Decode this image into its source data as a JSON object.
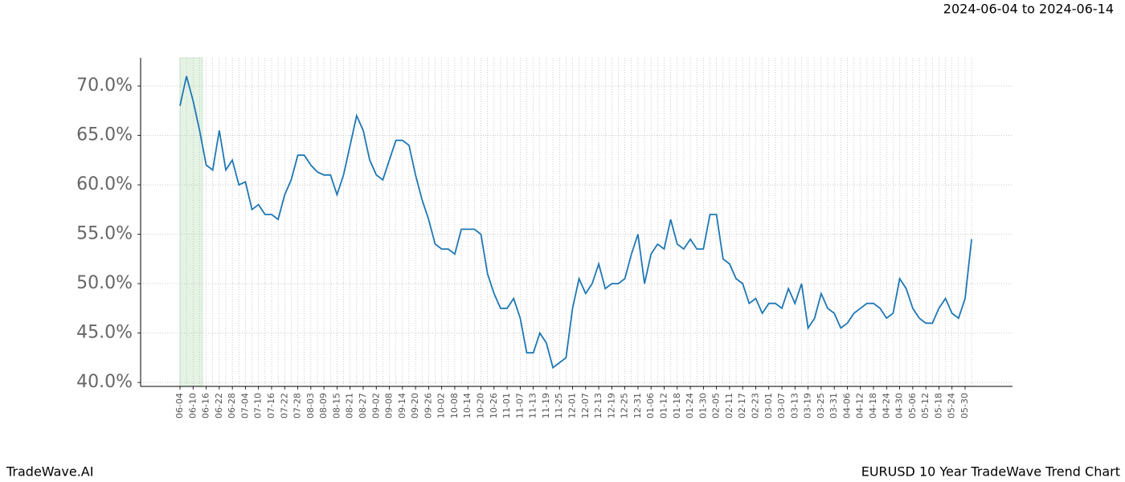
{
  "chart_data": {
    "type": "line",
    "title": "EURUSD 10 Year TradeWave Trend Chart",
    "subtitle": "2024-06-04 to 2024-06-14",
    "brand": "TradeWave.AI",
    "categories": [
      "06-04",
      null,
      "06-10",
      null,
      "06-16",
      null,
      "06-22",
      null,
      "06-28",
      null,
      "07-04",
      null,
      "07-10",
      null,
      "07-16",
      null,
      "07-22",
      null,
      "07-28",
      null,
      "08-03",
      null,
      "08-09",
      null,
      "08-15",
      null,
      "08-21",
      null,
      "08-27",
      null,
      "09-02",
      null,
      "09-08",
      null,
      "09-14",
      null,
      "09-20",
      null,
      "09-26",
      null,
      "10-02",
      null,
      "10-08",
      null,
      "10-14",
      null,
      "10-20",
      null,
      "10-26",
      null,
      "11-01",
      null,
      "11-07",
      null,
      "11-13",
      null,
      "11-19",
      null,
      "11-25",
      null,
      "12-01",
      null,
      "12-07",
      null,
      "12-13",
      null,
      "12-19",
      null,
      "12-25",
      null,
      "12-31",
      null,
      "01-06",
      null,
      "01-12",
      null,
      "01-18",
      null,
      "01-24",
      null,
      "01-30",
      null,
      "02-05",
      null,
      "02-11",
      null,
      "02-17",
      null,
      "02-23",
      null,
      "03-01",
      null,
      "03-07",
      null,
      "03-13",
      null,
      "03-19",
      null,
      "03-25",
      null,
      "03-31",
      null,
      "04-06",
      null,
      "04-12",
      null,
      "04-18",
      null,
      "04-24",
      null,
      "04-30",
      null,
      "05-06",
      null,
      "05-12",
      null,
      "05-18",
      null,
      "05-24",
      null,
      "05-30",
      null
    ],
    "series": [
      {
        "name": "EURUSD",
        "color": "#1f77b4",
        "values": [
          68.0,
          71.0,
          68.5,
          65.5,
          62.0,
          61.5,
          65.5,
          61.5,
          62.5,
          60.0,
          60.3,
          57.5,
          58.0,
          57.0,
          57.0,
          56.5,
          59.0,
          60.5,
          63.0,
          63.0,
          62.0,
          61.3,
          61.0,
          61.0,
          59.0,
          61.0,
          64.0,
          67.0,
          65.5,
          62.5,
          61.0,
          60.5,
          62.5,
          64.5,
          64.5,
          64.0,
          61.0,
          58.5,
          56.5,
          54.0,
          53.5,
          53.5,
          53.0,
          55.5,
          55.5,
          55.5,
          55.0,
          51.0,
          49.0,
          47.5,
          47.5,
          48.5,
          46.5,
          43.0,
          43.0,
          45.0,
          44.0,
          41.5,
          42.0,
          42.5,
          47.5,
          50.5,
          49.0,
          50.0,
          52.0,
          49.5,
          50.0,
          50.0,
          50.5,
          53.0,
          55.0,
          50.0,
          53.0,
          54.0,
          53.5,
          56.5,
          54.0,
          53.5,
          54.5,
          53.5,
          53.5,
          57.0,
          57.0,
          52.5,
          52.0,
          50.5,
          50.0,
          48.0,
          48.5,
          47.0,
          48.0,
          48.0,
          47.5,
          49.5,
          48.0,
          50.0,
          45.5,
          46.5,
          49.0,
          47.5,
          47.0,
          45.5,
          46.0,
          47.0,
          47.5,
          48.0,
          48.0,
          47.5,
          46.5,
          47.0,
          50.5,
          49.5,
          47.5,
          46.5,
          46.0,
          46.0,
          47.5,
          48.5,
          47.0,
          46.5,
          48.5,
          54.5
        ]
      }
    ],
    "ylim": [
      39.6,
      72.85
    ],
    "yticks": [
      {
        "value": 40,
        "label": "40.0%"
      },
      {
        "value": 45,
        "label": "45.0%"
      },
      {
        "value": 50,
        "label": "50.0%"
      },
      {
        "value": 55,
        "label": "55.0%"
      },
      {
        "value": 60,
        "label": "60.0%"
      },
      {
        "value": 65,
        "label": "65.0%"
      },
      {
        "value": 70,
        "label": "70.0%"
      }
    ],
    "grid": true
  }
}
